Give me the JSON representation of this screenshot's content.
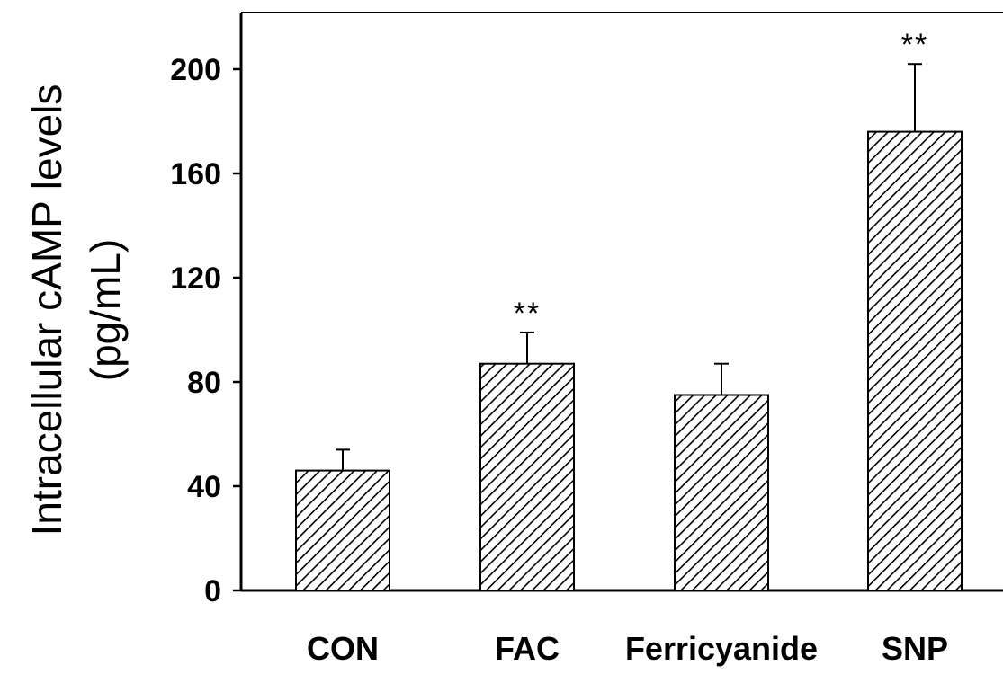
{
  "chart_data": {
    "type": "bar",
    "categories": [
      "CON",
      "FAC",
      "Ferricyanide",
      "SNP"
    ],
    "values": [
      46,
      87,
      75,
      176
    ],
    "error_upper": [
      54,
      99,
      87,
      202
    ],
    "significance": [
      "",
      "**",
      "",
      "**"
    ],
    "ylabel_line1": "Intracellular cAMP levels",
    "ylabel_line2": "(pg/mL)",
    "xlabel": "",
    "title": "",
    "ylim": [
      0,
      220
    ],
    "yticks": [
      0,
      40,
      80,
      120,
      160,
      200
    ],
    "ytick_labels": [
      "0",
      "40",
      "80",
      "120",
      "160",
      "200"
    ],
    "grid": false,
    "bar_fill": "diagonal-hatch",
    "colors": {
      "axis": "#000000",
      "bar_stroke": "#000000",
      "hatch": "#000000",
      "background": "#ffffff"
    }
  }
}
